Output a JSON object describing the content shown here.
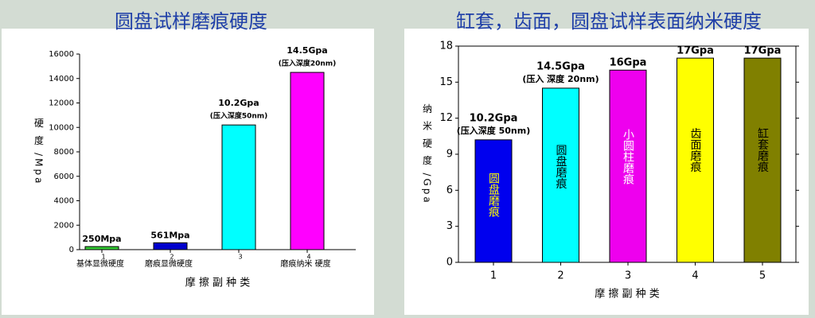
{
  "chart_data": [
    {
      "type": "bar",
      "title": "圆盘试样磨痕硬度",
      "ylabel": "硬 度 /Mpa",
      "xlabel": "摩 擦 副 种 类",
      "categories": [
        "1",
        "2",
        "3",
        "4"
      ],
      "category_labels": [
        "基体显微硬度",
        "磨痕显微硬度",
        null,
        "磨痕纳米 硬度"
      ],
      "values": [
        250,
        561,
        10200,
        14500
      ],
      "value_labels": [
        "250Mpa",
        "561Mpa",
        "10.2Gpa",
        "14.5Gpa"
      ],
      "notes": [
        null,
        null,
        "(压入深度50nm)",
        "(压入深度20nm)"
      ],
      "colors": [
        "#33cc33",
        "#0000cc",
        "#00ffff",
        "#ff00ff"
      ],
      "ylim": [
        0,
        16000
      ],
      "yticks": [
        0,
        2000,
        4000,
        6000,
        8000,
        10000,
        12000,
        14000,
        16000
      ],
      "grid": false
    },
    {
      "type": "bar",
      "title": "缸套，齿面，圆盘试样表面纳米硬度",
      "ylabel": "纳 米 硬 度 /Gpa",
      "xlabel": "摩 擦 副 种 类",
      "categories": [
        "1",
        "2",
        "3",
        "4",
        "5"
      ],
      "values": [
        10.2,
        14.5,
        16,
        17,
        17
      ],
      "value_labels": [
        "10.2Gpa",
        "14.5Gpa",
        "16Gpa",
        "17Gpa",
        "17Gpa"
      ],
      "notes": [
        "(压入深度 50nm)",
        "(压入 深度 20nm)",
        null,
        null,
        null
      ],
      "bar_texts": [
        "圆盘磨痕",
        "圆盘磨痕",
        "小圆柱磨痕",
        "齿面磨痕",
        "缸套磨痕"
      ],
      "bar_text_colors": [
        "#ffff00",
        "#000000",
        "#ffffff",
        "#000000",
        "#000000"
      ],
      "colors": [
        "#0000ee",
        "#00ffff",
        "#ee00ee",
        "#ffff00",
        "#808000"
      ],
      "ylim": [
        0,
        18
      ],
      "yticks": [
        0,
        3,
        6,
        9,
        12,
        15,
        18
      ],
      "grid": false
    }
  ]
}
